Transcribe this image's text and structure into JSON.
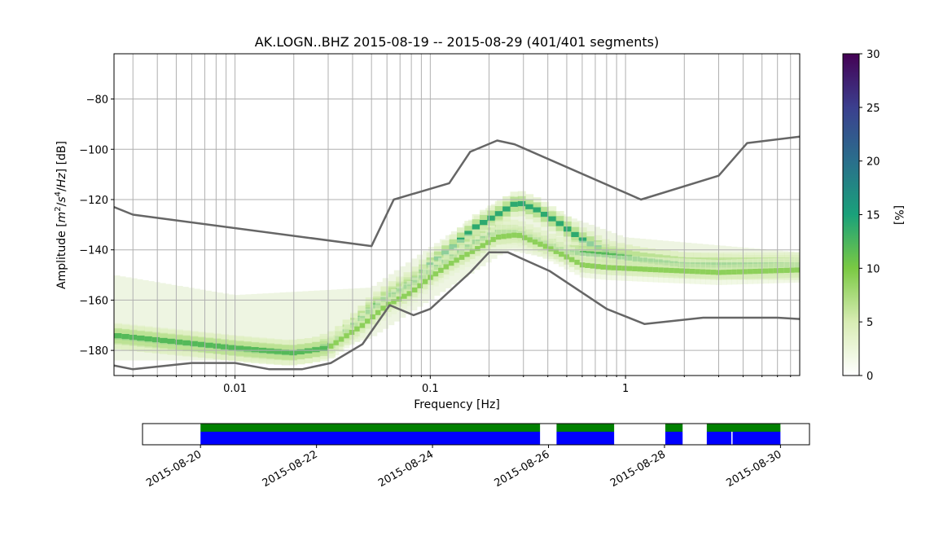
{
  "chart_data": [
    {
      "type": "heatmap",
      "title": "AK.LOGN..BHZ   2015-08-19 -- 2015-08-29  (401/401 segments)",
      "xlabel": "Frequency [Hz]",
      "ylabel_parts": [
        "Amplitude [",
        "m",
        "2",
        "/",
        "s",
        "4",
        "/",
        "Hz",
        "] [dB]"
      ],
      "xscale": "log",
      "xlim": [
        0.0024,
        7.8
      ],
      "ylim": [
        -190,
        -62
      ],
      "grid": true,
      "x_ticks": [
        {
          "v": 0.01,
          "label": "0.01"
        },
        {
          "v": 0.1,
          "label": "0.1"
        },
        {
          "v": 1,
          "label": "1"
        }
      ],
      "y_ticks": [
        -80,
        -100,
        -120,
        -140,
        -160,
        -180
      ],
      "y_tick_labels": [
        "−80",
        "−100",
        "−120",
        "−140",
        "−160",
        "−180"
      ],
      "colorbar": {
        "label": "[%]",
        "range": [
          0,
          30
        ],
        "ticks": [
          0,
          5,
          10,
          15,
          20,
          25,
          30
        ],
        "tick_labels": [
          "0",
          "5",
          "10",
          "15",
          "20",
          "25",
          "30"
        ],
        "colors": [
          "#ffffff",
          "#d8ecb4",
          "#7ac943",
          "#1aa17a",
          "#2a6f8c",
          "#3b3f8e",
          "#440154"
        ]
      },
      "noise_model_high": {
        "name": "",
        "color": "#666666",
        "points": [
          [
            0.0024,
            -123
          ],
          [
            0.003,
            -126
          ],
          [
            0.05,
            -138.5
          ],
          [
            0.065,
            -120
          ],
          [
            0.125,
            -113.5
          ],
          [
            0.16,
            -101
          ],
          [
            0.22,
            -96.5
          ],
          [
            0.27,
            -98
          ],
          [
            1.2,
            -120
          ],
          [
            3.0,
            -110.5
          ],
          [
            4.2,
            -97.5
          ],
          [
            7.8,
            -95
          ]
        ]
      },
      "noise_model_low": {
        "name": "",
        "color": "#666666",
        "points": [
          [
            0.0024,
            -186
          ],
          [
            0.003,
            -187.5
          ],
          [
            0.006,
            -185
          ],
          [
            0.01,
            -185
          ],
          [
            0.015,
            -187.5
          ],
          [
            0.022,
            -187.5
          ],
          [
            0.031,
            -185
          ],
          [
            0.045,
            -177.5
          ],
          [
            0.062,
            -162
          ],
          [
            0.082,
            -166
          ],
          [
            0.1,
            -163.5
          ],
          [
            0.16,
            -149
          ],
          [
            0.2,
            -141
          ],
          [
            0.25,
            -141
          ],
          [
            0.41,
            -148.5
          ],
          [
            0.8,
            -163.5
          ],
          [
            1.25,
            -169.5
          ],
          [
            2.5,
            -167
          ],
          [
            6.0,
            -167
          ],
          [
            7.8,
            -167.5
          ]
        ]
      },
      "psd_mode_curves": [
        {
          "name": "",
          "weight": 14,
          "points": [
            [
              0.0024,
              -174.5
            ],
            [
              0.005,
              -177
            ],
            [
              0.008,
              -178.5
            ],
            [
              0.012,
              -180
            ],
            [
              0.018,
              -181
            ],
            [
              0.025,
              -180
            ],
            [
              0.032,
              -177
            ],
            [
              0.04,
              -171
            ],
            [
              0.05,
              -163
            ],
            [
              0.065,
              -157
            ],
            [
              0.08,
              -153
            ],
            [
              0.1,
              -146
            ],
            [
              0.13,
              -139
            ],
            [
              0.17,
              -131
            ],
            [
              0.22,
              -126
            ],
            [
              0.28,
              -121
            ],
            [
              0.35,
              -124
            ],
            [
              0.45,
              -129
            ],
            [
              0.6,
              -136
            ],
            [
              0.8,
              -141
            ],
            [
              1.2,
              -144
            ],
            [
              2,
              -146
            ],
            [
              4,
              -147
            ],
            [
              7.8,
              -147
            ]
          ]
        },
        {
          "name": "",
          "weight": 12,
          "points": [
            [
              0.0024,
              -174
            ],
            [
              0.01,
              -179
            ],
            [
              0.02,
              -181
            ],
            [
              0.03,
              -179
            ],
            [
              0.045,
              -167
            ],
            [
              0.06,
              -159
            ],
            [
              0.08,
              -154
            ],
            [
              0.1,
              -149
            ],
            [
              0.13,
              -143
            ],
            [
              0.17,
              -137
            ],
            [
              0.22,
              -133
            ],
            [
              0.28,
              -133
            ],
            [
              0.35,
              -136
            ],
            [
              0.5,
              -141
            ],
            [
              0.8,
              -142
            ],
            [
              1.2,
              -144
            ],
            [
              2,
              -146
            ],
            [
              7.8,
              -146
            ]
          ]
        },
        {
          "name": "",
          "weight": 9,
          "points": [
            [
              0.03,
              -179
            ],
            [
              0.045,
              -170
            ],
            [
              0.06,
              -162
            ],
            [
              0.08,
              -157
            ],
            [
              0.1,
              -151
            ],
            [
              0.13,
              -145
            ],
            [
              0.17,
              -140
            ],
            [
              0.22,
              -135
            ],
            [
              0.28,
              -134
            ],
            [
              0.4,
              -139
            ],
            [
              0.6,
              -146
            ],
            [
              0.8,
              -147
            ],
            [
              1.5,
              -148
            ],
            [
              3,
              -149
            ],
            [
              7.8,
              -148
            ]
          ]
        }
      ],
      "psd_background_band": {
        "x_range": [
          0.0024,
          7.8
        ],
        "top": [
          [
            0.0024,
            -150
          ],
          [
            0.01,
            -158
          ],
          [
            0.05,
            -155
          ],
          [
            0.25,
            -118
          ],
          [
            1,
            -135
          ],
          [
            7.8,
            -141
          ]
        ],
        "bottom": [
          [
            0.0024,
            -184
          ],
          [
            0.02,
            -184
          ],
          [
            0.05,
            -175
          ],
          [
            0.25,
            -140
          ],
          [
            1,
            -150
          ],
          [
            7.8,
            -152
          ]
        ]
      }
    },
    {
      "type": "bar",
      "title": "",
      "xlim": [
        "2015-08-19T00:00",
        "2015-08-30T12:00"
      ],
      "x_tick_labels": [
        "2015-08-20",
        "2015-08-22",
        "2015-08-24",
        "2015-08-26",
        "2015-08-28",
        "2015-08-30"
      ],
      "x_ticks": [
        "2015-08-20",
        "2015-08-22",
        "2015-08-24",
        "2015-08-26",
        "2015-08-28",
        "2015-08-30"
      ],
      "series": [
        {
          "name": "",
          "color": "#008000",
          "level": "upper",
          "intervals": [
            [
              "2015-08-20T00:00",
              "2015-08-25T20:30"
            ],
            [
              "2015-08-26T03:20",
              "2015-08-27T03:10"
            ],
            [
              "2015-08-28T00:20",
              "2015-08-28T07:30"
            ],
            [
              "2015-08-28T17:30",
              "2015-08-29T23:59"
            ]
          ]
        },
        {
          "name": "",
          "color": "#0000ff",
          "level": "lower",
          "intervals": [
            [
              "2015-08-20T00:00",
              "2015-08-25T20:30"
            ],
            [
              "2015-08-26T03:20",
              "2015-08-27T03:10"
            ],
            [
              "2015-08-28T00:20",
              "2015-08-28T07:30"
            ],
            [
              "2015-08-28T17:30",
              "2015-08-29T03:40"
            ],
            [
              "2015-08-29T04:10",
              "2015-08-29T23:59"
            ]
          ]
        }
      ]
    }
  ]
}
